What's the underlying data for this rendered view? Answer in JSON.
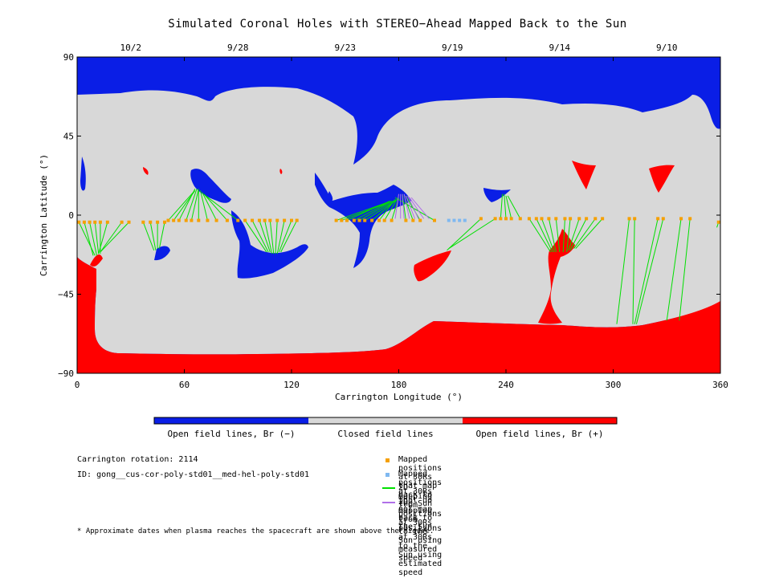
{
  "title": "Simulated Coronal Holes with STEREO−Ahead Mapped Back to the Sun",
  "colors": {
    "open_negative": "#0a1ee6",
    "closed": "#d8d8d8",
    "open_positive": "#ff0000",
    "mapped": "#f5a000",
    "unmapped": "#7fb8f0",
    "measured_line": "#00e000",
    "estimated_line": "#b070e8"
  },
  "chart_data": {
    "type": "map",
    "xlabel": "Carrington Longitude (°)",
    "ylabel": "Carrington Latitude (°)",
    "xlim": [
      0,
      360
    ],
    "ylim": [
      -90,
      90
    ],
    "x_ticks": [
      "0",
      "60",
      "120",
      "180",
      "240",
      "300",
      "360"
    ],
    "y_ticks": [
      "90",
      "45",
      "0",
      "−45",
      "−90"
    ],
    "top_axis_dates": [
      {
        "label": "10/2",
        "lon": 30
      },
      {
        "label": "9/28",
        "lon": 90
      },
      {
        "label": "9/23",
        "lon": 150
      },
      {
        "label": "9/19",
        "lon": 210
      },
      {
        "label": "9/14",
        "lon": 270
      },
      {
        "label": "9/10",
        "lon": 330
      }
    ],
    "mapped_points": [
      {
        "lon": 1,
        "lat": -4,
        "sun": [
          10,
          -23
        ]
      },
      {
        "lon": 4,
        "lat": -4,
        "sun": [
          9,
          -23
        ]
      },
      {
        "lon": 7,
        "lat": -4,
        "sun": [
          11,
          -23
        ]
      },
      {
        "lon": 10,
        "lat": -4,
        "sun": [
          12,
          -22
        ]
      },
      {
        "lon": 13,
        "lat": -4,
        "sun": [
          13,
          -22
        ]
      },
      {
        "lon": 17,
        "lat": -4,
        "sun": [
          12,
          -22
        ]
      },
      {
        "lon": 25,
        "lat": -4,
        "sun": [
          13,
          -21
        ]
      },
      {
        "lon": 29,
        "lat": -4,
        "sun": [
          13,
          -21
        ]
      },
      {
        "lon": 37,
        "lat": -4,
        "sun": [
          43,
          -20
        ]
      },
      {
        "lon": 41,
        "lat": -4,
        "sun": [
          44,
          -20
        ]
      },
      {
        "lon": 45,
        "lat": -4,
        "sun": [
          45,
          -19
        ]
      },
      {
        "lon": 49,
        "lat": -4,
        "sun": [
          46,
          -19
        ]
      },
      {
        "lon": 51,
        "lat": -3,
        "sun": [
          65,
          13
        ]
      },
      {
        "lon": 54,
        "lat": -3,
        "sun": [
          66,
          14
        ]
      },
      {
        "lon": 57,
        "lat": -3,
        "sun": [
          66,
          15
        ]
      },
      {
        "lon": 61,
        "lat": -3,
        "sun": [
          67,
          15
        ]
      },
      {
        "lon": 64,
        "lat": -3,
        "sun": [
          68,
          15
        ]
      },
      {
        "lon": 68,
        "lat": -3,
        "sun": [
          68,
          14
        ]
      },
      {
        "lon": 73,
        "lat": -3,
        "sun": [
          69,
          14
        ]
      },
      {
        "lon": 78,
        "lat": -3,
        "sun": [
          70,
          13
        ]
      },
      {
        "lon": 84,
        "lat": -3,
        "sun": [
          71,
          12
        ]
      },
      {
        "lon": 90,
        "lat": -3,
        "sun": [
          72,
          11
        ]
      },
      {
        "lon": 94,
        "lat": -3,
        "sun": [
          106,
          -21
        ]
      },
      {
        "lon": 98,
        "lat": -3,
        "sun": [
          107,
          -21
        ]
      },
      {
        "lon": 102,
        "lat": -3,
        "sun": [
          108,
          -21
        ]
      },
      {
        "lon": 105,
        "lat": -3,
        "sun": [
          109,
          -22
        ]
      },
      {
        "lon": 108,
        "lat": -3,
        "sun": [
          110,
          -22
        ]
      },
      {
        "lon": 112,
        "lat": -3,
        "sun": [
          111,
          -22
        ]
      },
      {
        "lon": 116,
        "lat": -3,
        "sun": [
          112,
          -22
        ]
      },
      {
        "lon": 120,
        "lat": -3,
        "sun": [
          113,
          -21
        ]
      },
      {
        "lon": 123,
        "lat": -3,
        "sun": [
          114,
          -21
        ]
      },
      {
        "lon": 145,
        "lat": -3,
        "sun": [
          173,
          7
        ]
      },
      {
        "lon": 148,
        "lat": -3,
        "sun": [
          174,
          7
        ]
      },
      {
        "lon": 151,
        "lat": -3,
        "sun": [
          175,
          8
        ]
      },
      {
        "lon": 155,
        "lat": -3,
        "sun": [
          176,
          8
        ]
      },
      {
        "lon": 158,
        "lat": -3,
        "sun": [
          177,
          8
        ]
      },
      {
        "lon": 161,
        "lat": -3,
        "sun": [
          178,
          8
        ]
      },
      {
        "lon": 165,
        "lat": -3,
        "sun": [
          179,
          9
        ]
      },
      {
        "lon": 169,
        "lat": -3,
        "sun": [
          178,
          9
        ]
      },
      {
        "lon": 172,
        "lat": -3,
        "sun": [
          179,
          9
        ]
      },
      {
        "lon": 176,
        "lat": -3,
        "sun": [
          180,
          10
        ]
      },
      {
        "lon": 184,
        "lat": -3,
        "sun": [
          182,
          12
        ]
      },
      {
        "lon": 188,
        "lat": -3,
        "sun": [
          183,
          11
        ]
      },
      {
        "lon": 192,
        "lat": -3,
        "sun": [
          184,
          11
        ]
      },
      {
        "lon": 200,
        "lat": -3,
        "sun": [
          178,
          10
        ]
      },
      {
        "lon": 226,
        "lat": -2,
        "sun": [
          207,
          -20
        ]
      },
      {
        "lon": 234,
        "lat": -2,
        "sun": [
          208,
          -19
        ]
      },
      {
        "lon": 237,
        "lat": -2,
        "sun": [
          238,
          12
        ]
      },
      {
        "lon": 240,
        "lat": -2,
        "sun": [
          239,
          12
        ]
      },
      {
        "lon": 243,
        "lat": -2,
        "sun": [
          240,
          11
        ]
      },
      {
        "lon": 248,
        "lat": -2,
        "sun": [
          241,
          11
        ]
      },
      {
        "lon": 253,
        "lat": -2,
        "sun": [
          265,
          -21
        ]
      },
      {
        "lon": 257,
        "lat": -2,
        "sun": [
          266,
          -21
        ]
      },
      {
        "lon": 260,
        "lat": -2,
        "sun": [
          267,
          -21
        ]
      },
      {
        "lon": 264,
        "lat": -2,
        "sun": [
          268,
          -21
        ]
      },
      {
        "lon": 268,
        "lat": -2,
        "sun": [
          270,
          -21
        ]
      },
      {
        "lon": 273,
        "lat": -2,
        "sun": [
          272,
          -21
        ]
      },
      {
        "lon": 276,
        "lat": -2,
        "sun": [
          274,
          -21
        ]
      },
      {
        "lon": 281,
        "lat": -2,
        "sun": [
          275,
          -20
        ]
      },
      {
        "lon": 285,
        "lat": -2,
        "sun": [
          276,
          -20
        ]
      },
      {
        "lon": 290,
        "lat": -2,
        "sun": [
          278,
          -19
        ]
      },
      {
        "lon": 294,
        "lat": -2,
        "sun": [
          279,
          -19
        ]
      },
      {
        "lon": 309,
        "lat": -2,
        "sun": [
          302,
          -62
        ]
      },
      {
        "lon": 312,
        "lat": -2,
        "sun": [
          311,
          -62
        ]
      },
      {
        "lon": 325,
        "lat": -2,
        "sun": [
          312,
          -62
        ]
      },
      {
        "lon": 328,
        "lat": -2,
        "sun": [
          313,
          -62
        ]
      },
      {
        "lon": 338,
        "lat": -2,
        "sun": [
          330,
          -60
        ]
      },
      {
        "lon": 343,
        "lat": -2,
        "sun": [
          337,
          -60
        ]
      },
      {
        "lon": 359,
        "lat": -4,
        "sun": [
          358,
          -7
        ]
      }
    ],
    "unmapped_points": [
      {
        "lon": 208,
        "lat": -3
      },
      {
        "lon": 211,
        "lat": -3
      },
      {
        "lon": 214,
        "lat": -3
      },
      {
        "lon": 217,
        "lat": -3
      }
    ],
    "estimated_lines": [
      {
        "from": [
          178,
          -2
        ],
        "to": [
          180,
          12
        ]
      },
      {
        "from": [
          181,
          -2
        ],
        "to": [
          181,
          12
        ]
      },
      {
        "from": [
          183,
          -2
        ],
        "to": [
          182,
          12
        ]
      },
      {
        "from": [
          186,
          -2
        ],
        "to": [
          183,
          12
        ]
      },
      {
        "from": [
          189,
          -2
        ],
        "to": [
          184,
          11
        ]
      },
      {
        "from": [
          191,
          -2
        ],
        "to": [
          185,
          11
        ]
      },
      {
        "from": [
          194,
          -2
        ],
        "to": [
          186,
          10
        ]
      },
      {
        "from": [
          197,
          -2
        ],
        "to": [
          187,
          10
        ]
      }
    ]
  },
  "colorbar": {
    "labels": [
      "Open field lines, Br (−)",
      "Closed field lines",
      "Open field lines, Br (+)"
    ]
  },
  "info": {
    "rotation": "Carrington rotation: 2114",
    "id": "ID: gong__cus-cor-poly-std01__med-hel-poly-std01"
  },
  "legend": [
    {
      "symbol": "square",
      "color_key": "mapped",
      "label": "Mapped positions at 30Rs that map back to the Sun"
    },
    {
      "symbol": "square",
      "color_key": "unmapped",
      "label": "Mapped positions at 30Rs that do not map back to the Sun"
    },
    {
      "symbol": "line",
      "color_key": "measured_line",
      "label": "2D mapping from positions at 30Rs to the Sun using measured speed"
    },
    {
      "symbol": "line",
      "color_key": "estimated_line",
      "label": "2D mapping from positions at 30Rs to the Sun using estimated speed"
    }
  ],
  "footnote": "* Approximate dates when plasma reaches the spacecraft are shown above the figure."
}
